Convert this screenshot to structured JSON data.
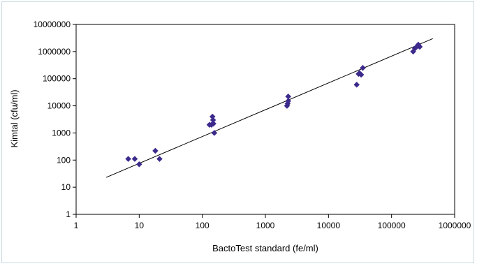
{
  "chart_data": {
    "type": "scatter",
    "xlabel": "BactoTest standard (fe/ml)",
    "ylabel": "Kimtal (cfu/ml)",
    "x_scale": "log",
    "y_scale": "log",
    "xlim": [
      1,
      1000000
    ],
    "ylim": [
      1,
      10000000
    ],
    "x_tick_labels": [
      "1",
      "10",
      "100",
      "1000",
      "10000",
      "100000",
      "1000000"
    ],
    "y_tick_labels": [
      "1",
      "10",
      "100",
      "1000",
      "10000",
      "100000",
      "1000000",
      "10000000"
    ],
    "grid": false,
    "legend": "none",
    "marker": "diamond",
    "marker_color": "#3d2a8c",
    "points": [
      {
        "x": 6.7,
        "y": 110
      },
      {
        "x": 8.5,
        "y": 110
      },
      {
        "x": 10,
        "y": 70
      },
      {
        "x": 18,
        "y": 220
      },
      {
        "x": 21,
        "y": 110
      },
      {
        "x": 130,
        "y": 2000
      },
      {
        "x": 140,
        "y": 2000
      },
      {
        "x": 145,
        "y": 4000
      },
      {
        "x": 148,
        "y": 3000
      },
      {
        "x": 150,
        "y": 2200
      },
      {
        "x": 155,
        "y": 1000
      },
      {
        "x": 2200,
        "y": 10000
      },
      {
        "x": 2250,
        "y": 12000
      },
      {
        "x": 2300,
        "y": 15000
      },
      {
        "x": 2300,
        "y": 22000
      },
      {
        "x": 28000,
        "y": 60000
      },
      {
        "x": 30000,
        "y": 150000
      },
      {
        "x": 31000,
        "y": 160000
      },
      {
        "x": 33000,
        "y": 140000
      },
      {
        "x": 35000,
        "y": 250000
      },
      {
        "x": 220000,
        "y": 1000000
      },
      {
        "x": 235000,
        "y": 1300000
      },
      {
        "x": 250000,
        "y": 1500000
      },
      {
        "x": 265000,
        "y": 1800000
      },
      {
        "x": 280000,
        "y": 1500000
      }
    ],
    "trendline": {
      "x": [
        3,
        450000
      ],
      "y": [
        23,
        3000000
      ],
      "color": "#000000"
    }
  }
}
